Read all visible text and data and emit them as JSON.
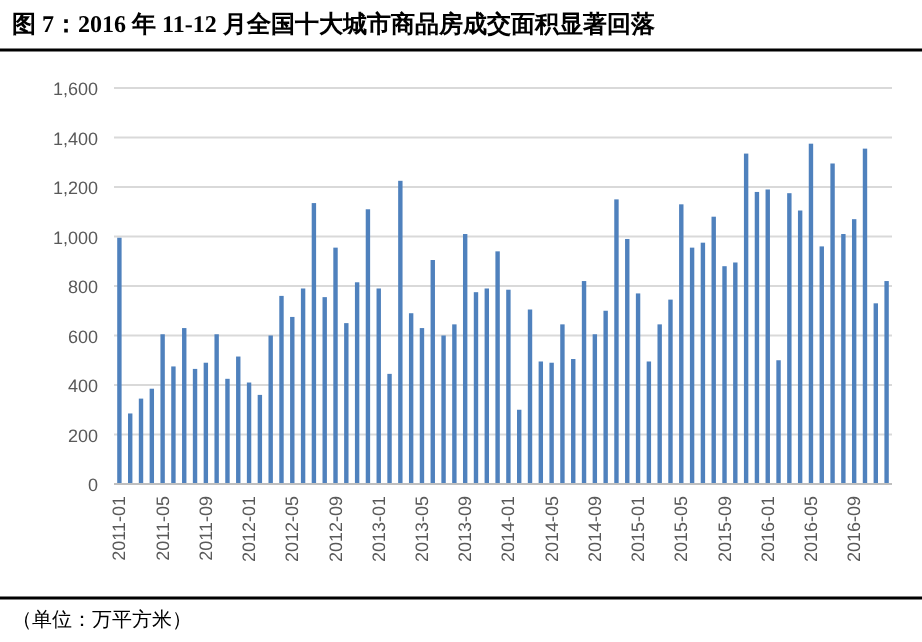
{
  "chart_data": {
    "type": "bar",
    "title": "图 7：2016 年 11-12 月全国十大城市商品房成交面积显著回落",
    "annotations": [
      "（单位：万平方米）"
    ],
    "categories": [
      "2011-01",
      null,
      null,
      null,
      "2011-05",
      null,
      null,
      null,
      "2011-09",
      null,
      null,
      null,
      "2012-01",
      null,
      null,
      null,
      "2012-05",
      null,
      null,
      null,
      "2012-09",
      null,
      null,
      null,
      "2013-01",
      null,
      null,
      null,
      "2013-05",
      null,
      null,
      null,
      "2013-09",
      null,
      null,
      null,
      "2014-01",
      null,
      null,
      null,
      "2014-05",
      null,
      null,
      null,
      "2014-09",
      null,
      null,
      null,
      "2015-01",
      null,
      null,
      null,
      "2015-05",
      null,
      null,
      null,
      "2015-09",
      null,
      null,
      null,
      "2016-01",
      null,
      null,
      null,
      "2016-05",
      null,
      null,
      null,
      "2016-09",
      null,
      null,
      null
    ],
    "values": [
      995,
      285,
      345,
      385,
      605,
      475,
      630,
      465,
      490,
      605,
      425,
      515,
      410,
      360,
      600,
      760,
      675,
      790,
      1135,
      755,
      955,
      650,
      815,
      1110,
      790,
      445,
      1225,
      690,
      630,
      905,
      600,
      645,
      1010,
      775,
      790,
      940,
      785,
      300,
      705,
      495,
      490,
      645,
      505,
      820,
      605,
      700,
      1150,
      990,
      770,
      495,
      645,
      745,
      1130,
      955,
      975,
      1080,
      880,
      895,
      1335,
      1180,
      1190,
      500,
      1175,
      1105,
      1375,
      960,
      1295,
      1010,
      1070,
      1355,
      730,
      820
    ],
    "color": "#4f81bd",
    "ylim": [
      0,
      1600
    ],
    "yticks": [
      0,
      {
        "value": 200,
        "label": "200"
      },
      {
        "value": 400,
        "label": "400"
      },
      {
        "value": 600,
        "label": "600"
      },
      {
        "value": 800,
        "label": "800"
      },
      {
        "value": 1000,
        "label": "1,000"
      },
      {
        "value": 1200,
        "label": "1,200"
      },
      {
        "value": 1400,
        "label": "1,400"
      },
      {
        "value": 1600,
        "label": "1,600"
      }
    ],
    "grid": "y"
  }
}
